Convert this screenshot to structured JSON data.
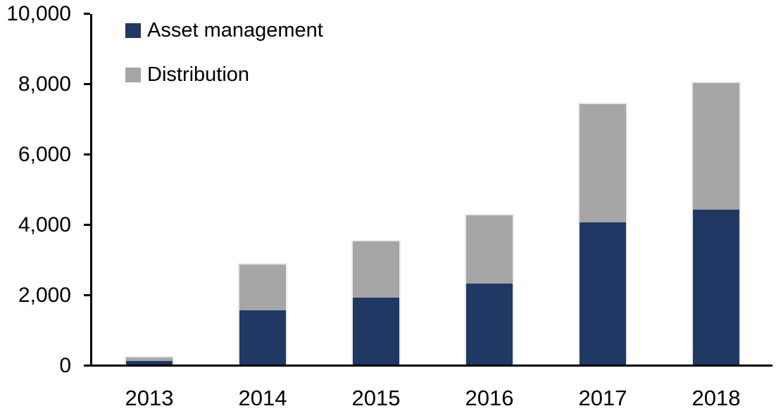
{
  "chart_data": {
    "type": "bar",
    "stacked": true,
    "title": "",
    "xlabel": "",
    "ylabel": "",
    "categories": [
      "2013",
      "2014",
      "2015",
      "2016",
      "2017",
      "2018"
    ],
    "series": [
      {
        "name": "Asset management",
        "color": "#1F3864",
        "values": [
          100,
          1550,
          1900,
          2300,
          4050,
          4400
        ]
      },
      {
        "name": "Distribution",
        "color": "#A6A6A6",
        "values": [
          100,
          1300,
          1600,
          1950,
          3350,
          3600
        ]
      }
    ],
    "totals": [
      200,
      2850,
      3500,
      4250,
      7400,
      8000
    ],
    "ylim": [
      0,
      10000
    ],
    "ytick_values": [
      0,
      2000,
      4000,
      6000,
      8000,
      10000
    ],
    "ytick_labels": [
      "0",
      "2,000",
      "4,000",
      "6,000",
      "8,000",
      "10,000"
    ],
    "grid": false,
    "legend_position": "top-left-inside",
    "colors": {
      "axis": "#000000",
      "text": "#000000",
      "background": "#FFFFFF",
      "bar_outline": "#E9E9E9"
    }
  }
}
